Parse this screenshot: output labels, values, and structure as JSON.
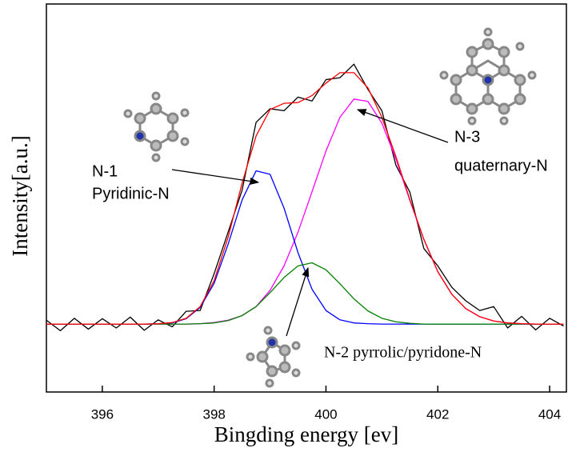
{
  "chart_data": {
    "type": "line",
    "x_label": "Bingding energy [ev]",
    "y_label": "Intensity[a.u.]",
    "xlim": [
      395,
      404.3
    ],
    "ylim": [
      0,
      100
    ],
    "xticks": [
      396,
      398,
      400,
      402,
      404
    ],
    "x": [
      395,
      395.25,
      395.5,
      395.75,
      396,
      396.25,
      396.5,
      396.75,
      397,
      397.25,
      397.5,
      397.75,
      398,
      398.25,
      398.5,
      398.75,
      399,
      399.25,
      399.5,
      399.75,
      400,
      400.25,
      400.5,
      400.75,
      401,
      401.25,
      401.5,
      401.75,
      402,
      402.25,
      402.5,
      402.75,
      403,
      403.25,
      403.5,
      403.75,
      404,
      404.25
    ],
    "series": [
      {
        "color": "#000000",
        "values": [
          18.5,
          15.8,
          19.0,
          16.2,
          18.9,
          16.5,
          19.3,
          15.9,
          18.6,
          16.8,
          20.8,
          21.0,
          30.5,
          41.2,
          52.0,
          69.5,
          73.0,
          72.5,
          76.0,
          75.0,
          80.5,
          81.0,
          84.5,
          78.0,
          72.5,
          58.5,
          51.5,
          37.0,
          32.5,
          27.0,
          23.5,
          21.0,
          22.0,
          16.5,
          19.5,
          16.0,
          19.0,
          17.0
        ]
      },
      {
        "color": "#ff00ff",
        "values": [
          17.5,
          17.5,
          17.5,
          17.5,
          17.5,
          17.5,
          17.5,
          17.5,
          17.5,
          17.5,
          17.5,
          17.6,
          17.9,
          18.5,
          19.7,
          22.0,
          26.2,
          32.5,
          41.2,
          51.6,
          62.1,
          70.8,
          75.5,
          74.9,
          69.3,
          60.1,
          49.4,
          39.3,
          31.0,
          25.2,
          21.5,
          19.4,
          18.3,
          17.8,
          17.6,
          17.5,
          17.5,
          17.5
        ]
      },
      {
        "color": "#0000ff",
        "values": [
          17.5,
          17.5,
          17.5,
          17.5,
          17.5,
          17.5,
          17.5,
          17.5,
          17.6,
          17.8,
          18.9,
          21.8,
          28.0,
          38.1,
          49.5,
          57.0,
          56.1,
          47.4,
          35.9,
          26.5,
          21.0,
          18.6,
          17.8,
          17.6,
          17.5,
          17.5,
          17.5,
          17.5,
          17.5,
          17.5,
          17.5,
          17.5,
          17.5,
          17.5,
          17.5,
          17.5,
          17.5,
          17.5
        ]
      },
      {
        "color": "#008000",
        "values": [
          17.5,
          17.5,
          17.5,
          17.5,
          17.5,
          17.5,
          17.5,
          17.5,
          17.5,
          17.5,
          17.5,
          17.6,
          17.8,
          18.4,
          19.7,
          22.0,
          25.6,
          29.5,
          32.5,
          33.3,
          31.5,
          27.9,
          24.0,
          20.9,
          19.0,
          18.1,
          17.7,
          17.5,
          17.5,
          17.5,
          17.5,
          17.5,
          17.5,
          17.5,
          17.5,
          17.5,
          17.5,
          17.5
        ]
      },
      {
        "color": "#ff0000",
        "values": [
          17.5,
          17.5,
          17.5,
          17.5,
          17.5,
          17.5,
          17.5,
          17.5,
          17.6,
          17.9,
          19.0,
          22.0,
          28.7,
          39.9,
          53.8,
          66.0,
          72.8,
          74.4,
          74.6,
          76.4,
          79.6,
          82.3,
          82.3,
          78.4,
          70.8,
          60.7,
          49.6,
          39.4,
          31.0,
          25.2,
          21.5,
          19.4,
          18.3,
          17.8,
          17.6,
          17.5,
          17.5,
          17.5
        ]
      }
    ],
    "annotations": [
      "N-1",
      "Pyridinic-N",
      "N-3",
      "quaternary-N",
      "N-2 pyrrolic/pyridone-N"
    ]
  }
}
